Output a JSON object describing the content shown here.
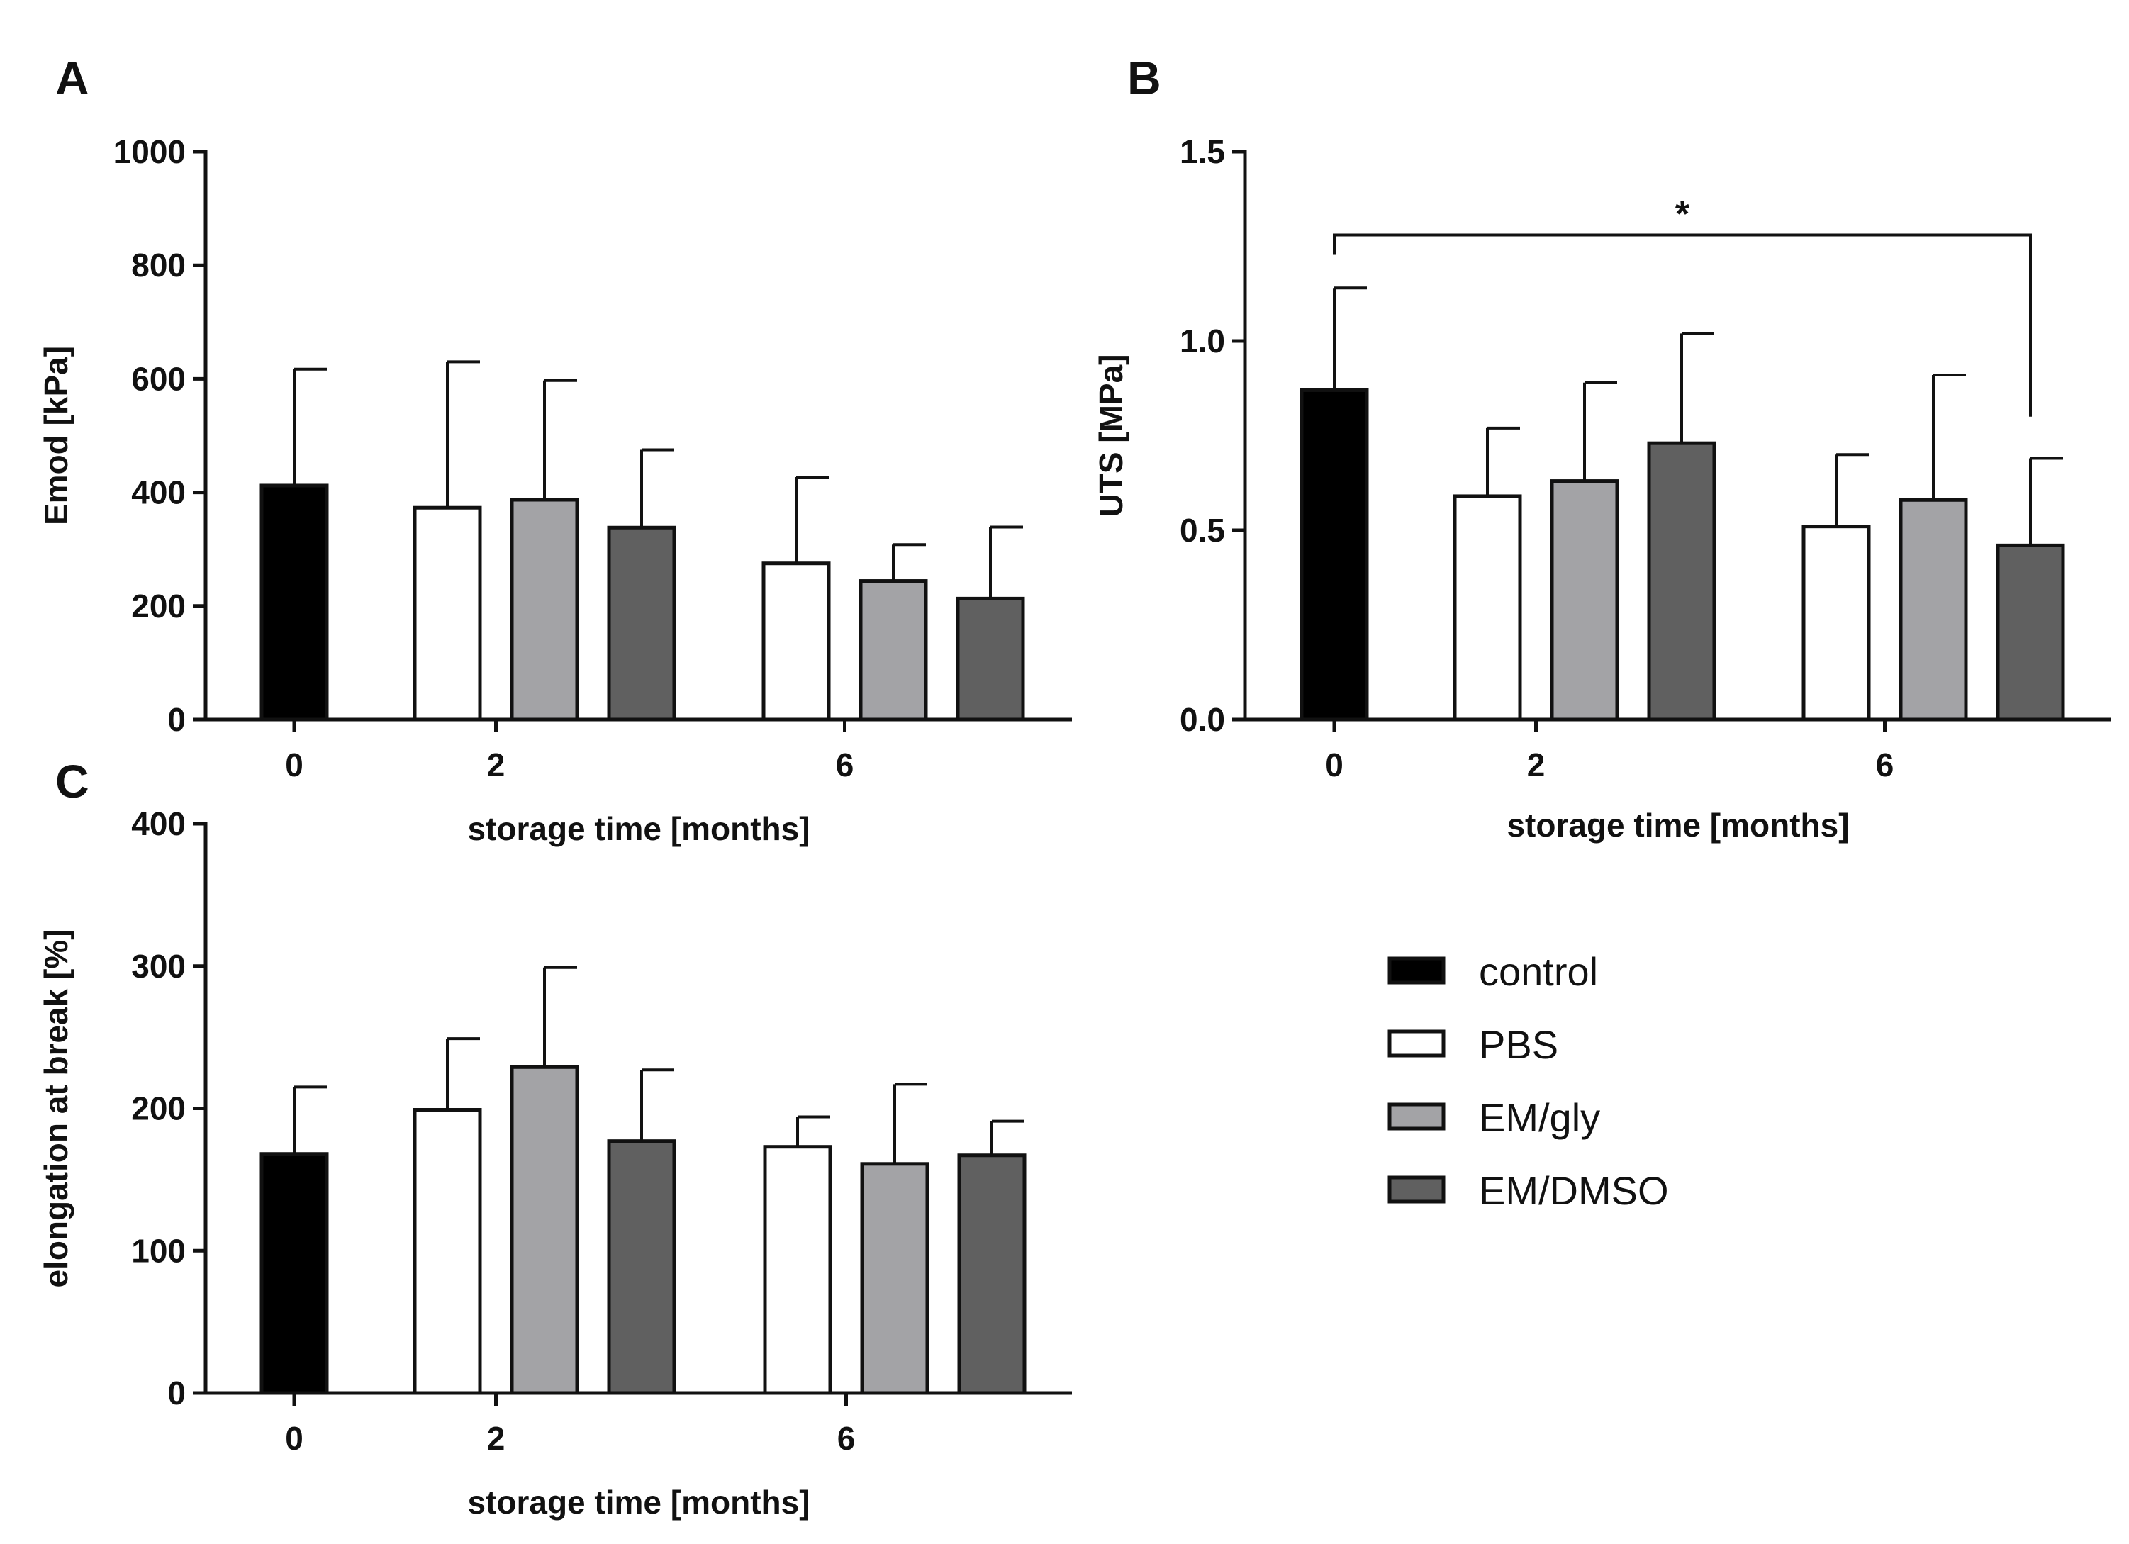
{
  "legend": [
    {
      "label": "control",
      "color": "#000000"
    },
    {
      "label": "PBS",
      "color": "#ffffff"
    },
    {
      "label": "EM/gly",
      "color": "#a3a3a6"
    },
    {
      "label": "EM/DMSO",
      "color": "#606060"
    }
  ],
  "chart_data": [
    {
      "panel": "A",
      "type": "bar",
      "xlabel": "storage time [months]",
      "ylabel": "Emod [kPa]",
      "ylim": [
        0,
        1000
      ],
      "yticks": [
        "0",
        "200",
        "400",
        "600",
        "800",
        "1000"
      ],
      "groups": [
        {
          "label": "0",
          "bars": [
            {
              "series": "control",
              "value": 412,
              "error": 205
            }
          ]
        },
        {
          "label": "2",
          "bars": [
            {
              "series": "PBS",
              "value": 373,
              "error": 257
            },
            {
              "series": "EM/gly",
              "value": 387,
              "error": 210
            },
            {
              "series": "EM/DMSO",
              "value": 338,
              "error": 137
            }
          ]
        },
        {
          "label": "6",
          "bars": [
            {
              "series": "PBS",
              "value": 275,
              "error": 152
            },
            {
              "series": "EM/gly",
              "value": 244,
              "error": 64
            },
            {
              "series": "EM/DMSO",
              "value": 213,
              "error": 126
            }
          ]
        }
      ]
    },
    {
      "panel": "B",
      "type": "bar",
      "xlabel": "storage time [months]",
      "ylabel": "UTS [MPa]",
      "ylim": [
        0,
        1.5
      ],
      "yticks": [
        "0.0",
        "0.5",
        "1.0",
        "1.5"
      ],
      "groups": [
        {
          "label": "0",
          "bars": [
            {
              "series": "control",
              "value": 0.87,
              "error": 0.27
            }
          ]
        },
        {
          "label": "2",
          "bars": [
            {
              "series": "PBS",
              "value": 0.59,
              "error": 0.18
            },
            {
              "series": "EM/gly",
              "value": 0.63,
              "error": 0.26
            },
            {
              "series": "EM/DMSO",
              "value": 0.73,
              "error": 0.29
            }
          ]
        },
        {
          "label": "6",
          "bars": [
            {
              "series": "PBS",
              "value": 0.51,
              "error": 0.19
            },
            {
              "series": "EM/gly",
              "value": 0.58,
              "error": 0.33
            },
            {
              "series": "EM/DMSO",
              "value": 0.46,
              "error": 0.23
            }
          ]
        }
      ],
      "annotations": [
        {
          "text": "*",
          "from": {
            "group": 0,
            "bar": 0
          },
          "to": {
            "group": 2,
            "bar": 2
          },
          "level": 1.28,
          "drop_to": 0.8
        }
      ]
    },
    {
      "panel": "C",
      "type": "bar",
      "xlabel": "storage time [months]",
      "ylabel": "elongation at break [%]",
      "ylim": [
        0,
        400
      ],
      "yticks": [
        "0",
        "100",
        "200",
        "300",
        "400"
      ],
      "groups": [
        {
          "label": "0",
          "bars": [
            {
              "series": "control",
              "value": 168,
              "error": 47
            }
          ]
        },
        {
          "label": "2",
          "bars": [
            {
              "series": "PBS",
              "value": 199,
              "error": 50
            },
            {
              "series": "EM/gly",
              "value": 229,
              "error": 70
            },
            {
              "series": "EM/DMSO",
              "value": 177,
              "error": 50
            }
          ]
        },
        {
          "label": "6",
          "bars": [
            {
              "series": "PBS",
              "value": 173,
              "error": 21
            },
            {
              "series": "EM/gly",
              "value": 161,
              "error": 56
            },
            {
              "series": "EM/DMSO",
              "value": 167,
              "error": 24
            }
          ]
        }
      ]
    }
  ]
}
